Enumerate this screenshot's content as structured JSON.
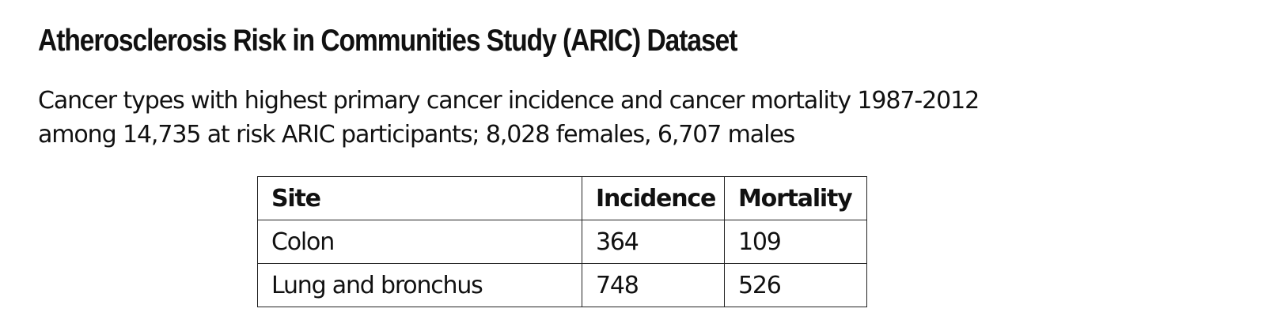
{
  "title": "Atherosclerosis Risk in Communities Study (ARIC) Dataset",
  "subtitle": {
    "line1": "Cancer types with highest primary cancer incidence and cancer mortality 1987-2012",
    "line2": "among 14,735 at risk ARIC participants; 8,028 females, 6,707 males"
  },
  "table": {
    "headers": [
      "Site",
      "Incidence",
      "Mortality"
    ],
    "rows": [
      [
        "Colon",
        "364",
        "109"
      ],
      [
        "Lung and bronchus",
        "748",
        "526"
      ]
    ]
  }
}
